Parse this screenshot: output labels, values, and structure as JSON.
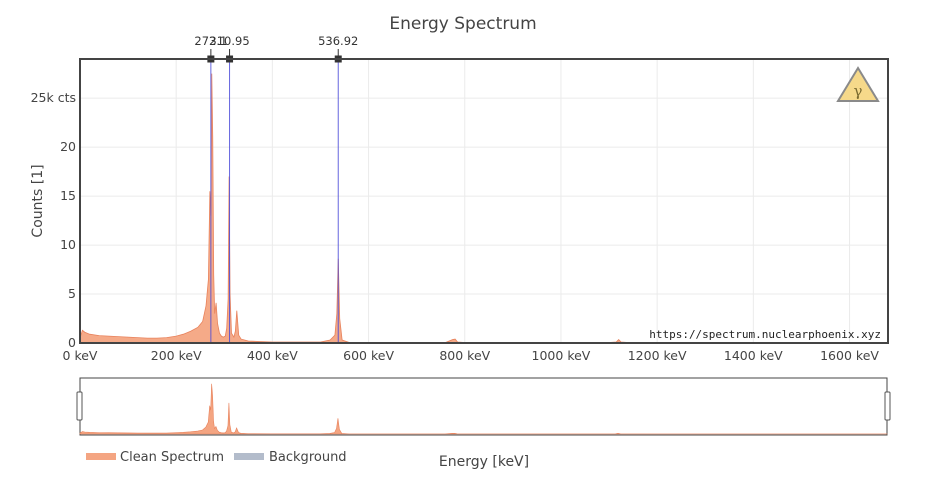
{
  "chart_data": {
    "type": "area",
    "title": "Energy Spectrum",
    "xlabel": "Energy [keV]",
    "ylabel": "Counts [1]",
    "xlim": [
      0,
      1680
    ],
    "ylim": [
      0,
      29
    ],
    "x_ticks": [
      {
        "value": 0,
        "label": "0 keV"
      },
      {
        "value": 200,
        "label": "200 keV"
      },
      {
        "value": 400,
        "label": "400 keV"
      },
      {
        "value": 600,
        "label": "600 keV"
      },
      {
        "value": 800,
        "label": "800 keV"
      },
      {
        "value": 1000,
        "label": "1000 keV"
      },
      {
        "value": 1200,
        "label": "1200 keV"
      },
      {
        "value": 1400,
        "label": "1400 keV"
      },
      {
        "value": 1600,
        "label": "1600 keV"
      }
    ],
    "y_ticks": [
      {
        "value": 0,
        "label": "0"
      },
      {
        "value": 5,
        "label": "5"
      },
      {
        "value": 10,
        "label": "10"
      },
      {
        "value": 15,
        "label": "15"
      },
      {
        "value": 20,
        "label": "20"
      },
      {
        "value": 25,
        "label": "25k cts"
      }
    ],
    "grid": true,
    "series": [
      {
        "name": "Clean Spectrum",
        "color": "#f4a582",
        "x": [
          0,
          5,
          10,
          20,
          40,
          60,
          80,
          100,
          120,
          140,
          160,
          180,
          200,
          215,
          230,
          245,
          255,
          262,
          267,
          270,
          272,
          274,
          276,
          278,
          280,
          283,
          286,
          290,
          294,
          298,
          302,
          305,
          308,
          310,
          312,
          315,
          320,
          323,
          326,
          330,
          335,
          350,
          400,
          450,
          500,
          520,
          530,
          534,
          537,
          540,
          545,
          560,
          600,
          700,
          760,
          775,
          780,
          785,
          800,
          900,
          1000,
          1100,
          1115,
          1120,
          1125,
          1140,
          1200,
          1300,
          1400,
          1500,
          1600,
          1680
        ],
        "y": [
          0.5,
          1.3,
          1.1,
          0.9,
          0.75,
          0.7,
          0.65,
          0.6,
          0.55,
          0.5,
          0.5,
          0.55,
          0.7,
          0.9,
          1.2,
          1.6,
          2.2,
          3.8,
          6.5,
          15.5,
          13.0,
          27.5,
          21.0,
          7.0,
          3.0,
          4.1,
          2.0,
          1.0,
          0.7,
          0.6,
          0.7,
          1.5,
          4.5,
          17.0,
          5.0,
          1.0,
          0.6,
          1.2,
          3.3,
          0.8,
          0.4,
          0.2,
          0.1,
          0.1,
          0.1,
          0.3,
          0.8,
          3.0,
          8.6,
          2.5,
          0.3,
          0.05,
          0.05,
          0.05,
          0.05,
          0.35,
          0.4,
          0.1,
          0.05,
          0.05,
          0.05,
          0.05,
          0.1,
          0.35,
          0.1,
          0.05,
          0.03,
          0.03,
          0.02,
          0.02,
          0.02,
          0.02
        ]
      },
      {
        "name": "Background",
        "color": "#b3bccb",
        "x": [
          0,
          1680
        ],
        "y": [
          0,
          0
        ]
      }
    ],
    "peaks": [
      {
        "energy": 272.1,
        "label": "272.1"
      },
      {
        "energy": 310.95,
        "label": "310.95"
      },
      {
        "energy": 536.92,
        "label": "536.92"
      }
    ],
    "legend": {
      "placement": "bottom-left",
      "entries": [
        {
          "name": "Clean Spectrum",
          "color": "#f4a582"
        },
        {
          "name": "Background",
          "color": "#b3bccb"
        }
      ]
    },
    "range_slider": true
  },
  "watermark": "https://spectrum.nuclearphoenix.xyz",
  "logo_symbol": "γ"
}
